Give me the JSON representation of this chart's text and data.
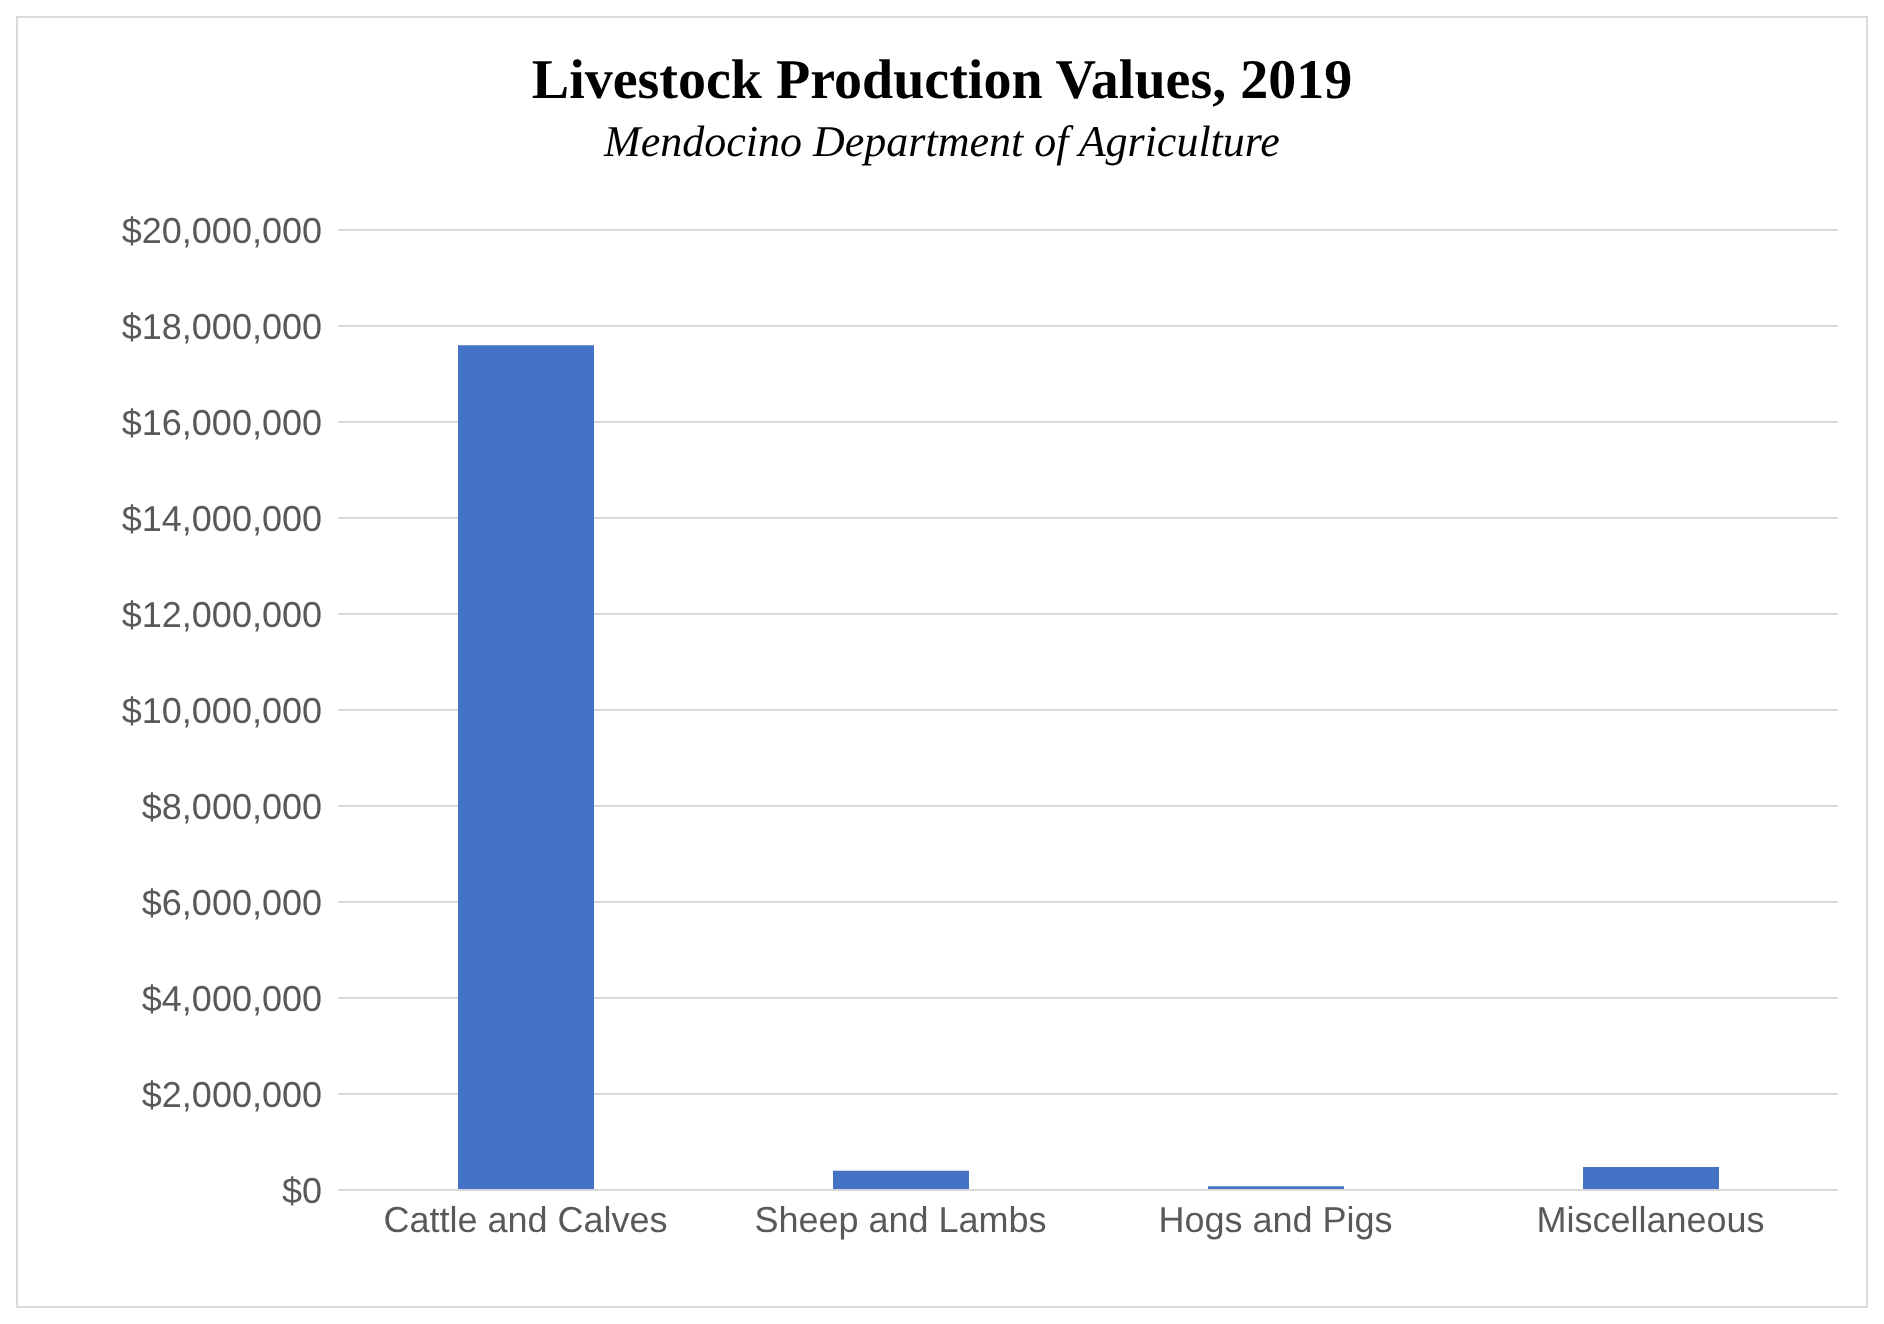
{
  "chart_data": {
    "type": "bar",
    "title": "Livestock Production Values, 2019",
    "subtitle": "Mendocino Department of Agriculture",
    "categories": [
      "Cattle and Calves",
      "Sheep and Lambs",
      "Hogs and Pigs",
      "Miscellaneous"
    ],
    "values": [
      17600000,
      400000,
      80000,
      480000
    ],
    "color": "#4472c4",
    "ylim": [
      0,
      20000000
    ],
    "yticks": [
      {
        "value": 0,
        "label": "$0"
      },
      {
        "value": 2000000,
        "label": "$2,000,000"
      },
      {
        "value": 4000000,
        "label": "$4,000,000"
      },
      {
        "value": 6000000,
        "label": "$6,000,000"
      },
      {
        "value": 8000000,
        "label": "$8,000,000"
      },
      {
        "value": 10000000,
        "label": "$10,000,000"
      },
      {
        "value": 12000000,
        "label": "$12,000,000"
      },
      {
        "value": 14000000,
        "label": "$14,000,000"
      },
      {
        "value": 16000000,
        "label": "$16,000,000"
      },
      {
        "value": 18000000,
        "label": "$18,000,000"
      },
      {
        "value": 20000000,
        "label": "$20,000,000"
      }
    ],
    "grid": "y",
    "legend": false
  }
}
